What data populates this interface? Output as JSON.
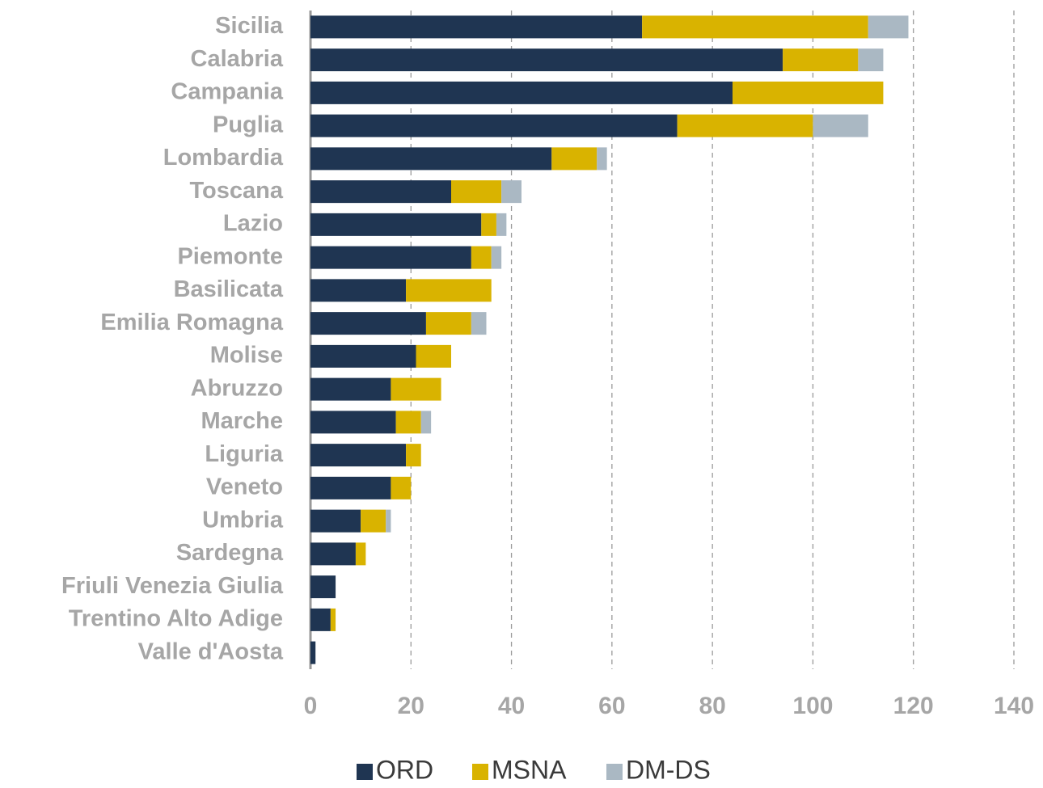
{
  "chart_data": {
    "type": "stacked-bar-horizontal",
    "categories": [
      "Sicilia",
      "Calabria",
      "Campania",
      "Puglia",
      "Lombardia",
      "Toscana",
      "Lazio",
      "Piemonte",
      "Basilicata",
      "Emilia Romagna",
      "Molise",
      "Abruzzo",
      "Marche",
      "Liguria",
      "Veneto",
      "Umbria",
      "Sardegna",
      "Friuli Venezia Giulia",
      "Trentino Alto Adige",
      "Valle d'Aosta"
    ],
    "series": [
      {
        "name": "ORD",
        "color": "#1f3552",
        "values": [
          66,
          94,
          84,
          73,
          48,
          28,
          34,
          32,
          19,
          23,
          21,
          16,
          17,
          19,
          16,
          10,
          9,
          5,
          4,
          1
        ]
      },
      {
        "name": "MSNA",
        "color": "#d9b300",
        "values": [
          45,
          15,
          30,
          27,
          9,
          10,
          3,
          4,
          17,
          9,
          7,
          10,
          5,
          3,
          4,
          5,
          2,
          0,
          1,
          0
        ]
      },
      {
        "name": "DM-DS",
        "color": "#aab8c3",
        "values": [
          8,
          5,
          0,
          11,
          2,
          4,
          2,
          2,
          0,
          3,
          0,
          0,
          2,
          0,
          0,
          1,
          0,
          0,
          0,
          0
        ]
      }
    ],
    "xlim": [
      0,
      140
    ],
    "xticks": [
      0,
      20,
      40,
      60,
      80,
      100,
      120,
      140
    ],
    "grid": true,
    "legend": "bottom"
  }
}
